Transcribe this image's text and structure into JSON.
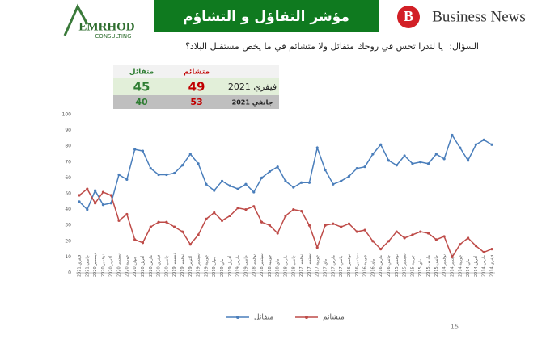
{
  "header": {
    "brand_left": "EMRHOD",
    "brand_left_sub": "CONSULTING",
    "title": "مؤشر التفاؤل و التشاؤم",
    "brand_right": "Business News",
    "logo_letter": "B"
  },
  "question": {
    "label": "السؤال:",
    "text": "يا لندرا تحس في روحك متفائل ولا متشائم في ما يخص مستقبل البلاد؟"
  },
  "table": {
    "header": [
      "متشائم",
      "متفائل"
    ],
    "rows": [
      [
        "فيفري 2021",
        49,
        45
      ],
      [
        "جانفي 2021",
        53,
        40
      ]
    ]
  },
  "chart_data": {
    "type": "line",
    "categories": [
      "فيفري 2021",
      "جانفي 2021",
      "ديسمبر 2020",
      "نوفمبر 2020",
      "أكتوبر 2020",
      "سبتمبر 2020",
      "جويلية 2020",
      "جوان 2020",
      "أفريل 2020",
      "مارس 2020",
      "فيفري 2020",
      "جانفي 2020",
      "ديسمبر 2019",
      "نوفمبر 2019",
      "أكتوبر 2019",
      "سبتمبر 2019",
      "جويلية 2019",
      "جوان 2019",
      "ماي 2019",
      "أفريل 2019",
      "مارس 2019",
      "جانفي 2019",
      "نوفمبر 2018",
      "سبتمبر 2018",
      "جويلية 2018",
      "ماي 2018",
      "مارس 2018",
      "جانفي 2018",
      "نوفمبر 2017",
      "سبتمبر 2017",
      "جويلية 2017",
      "ماي 2017",
      "مارس 2017",
      "جانفي 2017",
      "نوفمبر 2016",
      "سبتمبر 2016",
      "جويلية 2016",
      "ماي 2016",
      "مارس 2016",
      "جانفي 2016",
      "نوفمبر 2015",
      "سبتمبر 2015",
      "جويلية 2015",
      "ماي 2015",
      "مارس 2015",
      "جانفي 2015",
      "نوفمبر 2014",
      "سبتمبر 2014",
      "جويلية 2014",
      "ماي 2014",
      "أفريل 2014",
      "مارس 2014",
      "فيفري 2014"
    ],
    "series": [
      {
        "name": "متفائل",
        "color": "#4a7ebb",
        "values": [
          45,
          40,
          52,
          43,
          44,
          62,
          59,
          78,
          77,
          66,
          62,
          62,
          63,
          68,
          75,
          69,
          56,
          52,
          58,
          55,
          53,
          56,
          51,
          60,
          64,
          67,
          58,
          54,
          57,
          57,
          79,
          65,
          56,
          58,
          61,
          66,
          67,
          75,
          81,
          71,
          68,
          74,
          69,
          70,
          69,
          75,
          72,
          87,
          79,
          71,
          81,
          84,
          81
        ]
      },
      {
        "name": "متشائم",
        "color": "#be4b48",
        "values": [
          49,
          53,
          44,
          51,
          49,
          33,
          37,
          21,
          19,
          29,
          32,
          32,
          29,
          26,
          18,
          24,
          34,
          38,
          33,
          36,
          41,
          40,
          42,
          32,
          30,
          25,
          36,
          40,
          39,
          30,
          16,
          30,
          31,
          29,
          31,
          26,
          27,
          20,
          15,
          20,
          26,
          22,
          24,
          26,
          25,
          21,
          23,
          10,
          18,
          22,
          17,
          13,
          15
        ]
      }
    ],
    "ylim": [
      0,
      100
    ],
    "yticks": [
      0,
      10,
      20,
      30,
      40,
      50,
      60,
      70,
      80,
      90,
      100
    ],
    "grid": false,
    "legend": "bottom"
  },
  "page_number": "15"
}
